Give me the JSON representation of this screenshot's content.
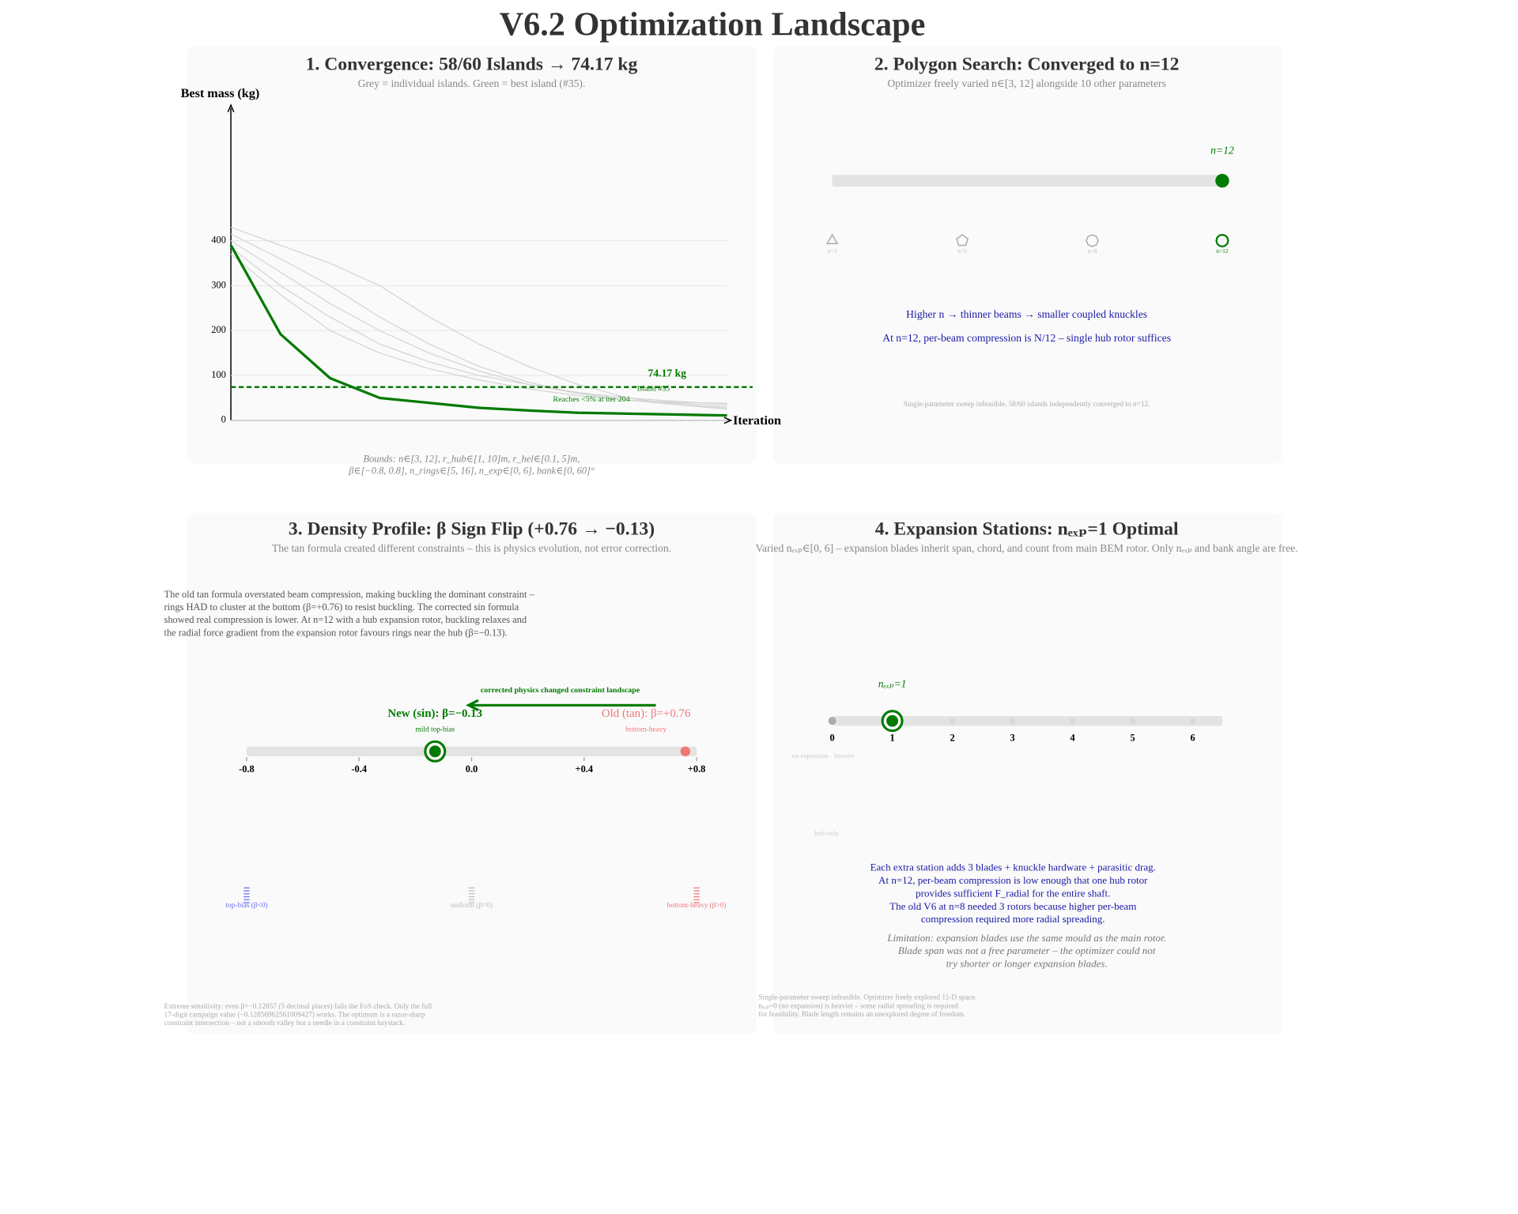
{
  "title": "V6.2 Optimization Landscape",
  "chart_data": {
    "type": "line",
    "title": "1. Convergence: 58/60 Islands → 74.17 kg",
    "subtitle": "Grey = individual islands. Green = best island (#35).",
    "ylabel": "Best mass (kg)",
    "xlabel": "Iteration",
    "x": [
      0,
      50,
      100,
      150,
      200,
      250,
      300,
      350,
      400,
      450,
      500
    ],
    "xlim": [
      0,
      500
    ],
    "ylim": [
      0,
      700
    ],
    "yticks": [
      0,
      100,
      200,
      300,
      400
    ],
    "grid": true,
    "series": [
      {
        "color": "#d4d4d4",
        "values": [
          430,
          390,
          350,
          300,
          230,
          170,
          120,
          80,
          50,
          35,
          25
        ]
      },
      {
        "color": "#d4d4d4",
        "values": [
          415,
          360,
          300,
          230,
          170,
          120,
          85,
          60,
          45,
          35,
          28
        ]
      },
      {
        "color": "#d4d4d4",
        "values": [
          400,
          330,
          260,
          200,
          150,
          110,
          80,
          60,
          45,
          38,
          32
        ]
      },
      {
        "color": "#d4d4d4",
        "values": [
          385,
          300,
          230,
          170,
          130,
          100,
          80,
          62,
          50,
          42,
          36
        ]
      },
      {
        "color": "#d4d4d4",
        "values": [
          370,
          280,
          200,
          150,
          115,
          90,
          70,
          55,
          45,
          40,
          38
        ]
      },
      {
        "color": "#007a00",
        "values": [
          390,
          192,
          94,
          50,
          39,
          28,
          22,
          17,
          15,
          13,
          11
        ]
      }
    ],
    "reference": {
      "value": 74.17,
      "label": "74.17 kg",
      "color": "#007a00"
    },
    "annotations": [
      "Island #35",
      "Reaches <5% at iter 204"
    ],
    "notes": [
      "Bounds: n∈[3, 12], r_hub∈[1, 10]m, r_hel∈[0.1, 5]m,",
      "β∈[−0.8, 0.8], n_rings∈[5, 16], n_exp∈[0, 6], bank∈[0, 60]°"
    ]
  },
  "panels": [
    {
      "title": "2. Polygon Search: Converged to n=12",
      "subtitle": "Optimizer freely varied n∈[3, 12] alongside 10 other parameters",
      "range": [
        3,
        12
      ],
      "value": 12,
      "value_label": "n=12",
      "shapes": [
        {
          "n": 3,
          "label": "n=3"
        },
        {
          "n": 5,
          "label": "n=5"
        },
        {
          "n": 8,
          "label": "n=8"
        },
        {
          "n": 12,
          "label": "n=12"
        }
      ],
      "notes": [
        "Higher n → thinner beams → smaller coupled knuckles",
        "At n=12, per-beam compression is N/12 – single hub rotor suffices"
      ],
      "footnote": "Single-parameter sweep infeasible. 58/60 islands independently converged to n=12."
    },
    {
      "title": "3. Density Profile: β Sign Flip (+0.76 → −0.13)",
      "subtitle": "The tan formula created different constraints – this is physics evolution, not error correction.",
      "body": [
        "The old tan formula overstated beam compression, making buckling the dominant constraint –",
        "rings HAD to cluster at the bottom (β=+0.76) to resist buckling. The corrected sin formula",
        "showed real compression is lower. At n=12 with a hub expansion rotor, buckling relaxes and",
        "the radial force gradient from the expansion rotor favours rings near the hub (β=−0.13)."
      ],
      "arrow_label": "corrected physics changed constraint landscape",
      "xlim": [
        -0.8,
        0.8
      ],
      "xticks": [
        {
          "value": -0.8,
          "label": "-0.8"
        },
        {
          "value": -0.4,
          "label": "-0.4"
        },
        {
          "value": 0,
          "label": "0.0"
        },
        {
          "value": 0.4,
          "label": "+0.4"
        },
        {
          "value": 0.8,
          "label": "+0.8"
        }
      ],
      "new": {
        "value": -0.13,
        "label": "New (sin): β=−0.13",
        "note": "mild top-bias",
        "color": "#007a00"
      },
      "old": {
        "value": 0.76,
        "label": "Old (tan): β=+0.76",
        "note": "bottom-heavy",
        "color": "#f07878"
      },
      "legend": [
        {
          "label": "top-bias (β<0)",
          "color": "#6b6bf0"
        },
        {
          "label": "uniform (β=0)",
          "color": "#bbbbbb"
        },
        {
          "label": "bottom-heavy (β>0)",
          "color": "#f07878"
        }
      ],
      "footnote": [
        "Extreme sensitivity: even β=−0.12857 (5 decimal places) fails the FoS check. Only the full",
        "17-digit campaign value (−0.12856962561009427) works. The optimum is a razor-sharp",
        "constraint intersection – not a smooth valley but a needle in a constraint haystack."
      ]
    },
    {
      "title": "4. Expansion Stations: nₑₓₚ=1 Optimal",
      "subtitle": "Varied nₑₓₚ∈[0, 6] – expansion blades inherit span, chord, and count from main BEM rotor. Only nₑₓₚ and bank angle are free.",
      "xticks": [
        0,
        1,
        2,
        3,
        4,
        5,
        6
      ],
      "value": 1,
      "value_label": "nₑₓₚ=1",
      "labels": [
        "no expansion",
        "heavier",
        "hub only"
      ],
      "notes": [
        "Each extra station adds 3 blades + knuckle hardware + parasitic drag.",
        "At n=12, per-beam compression is low enough that one hub rotor",
        "provides sufficient F_radial for the entire shaft.",
        "The old V6 at n=8 needed 3 rotors because higher per-beam",
        "compression required more radial spreading."
      ],
      "limitation": [
        "Limitation: expansion blades use the same mould as the main rotor.",
        "Blade span was not a free parameter – the optimizer could not",
        "try shorter or longer expansion blades."
      ],
      "footnote": [
        "Single-parameter sweep infeasible. Optimizer freely explored 11-D space.",
        "nₑₓₚ=0 (no expansion) is heavier – some radial spreading is required",
        "for feasibility. Blade length remains an unexplored degree of freedom."
      ]
    }
  ]
}
